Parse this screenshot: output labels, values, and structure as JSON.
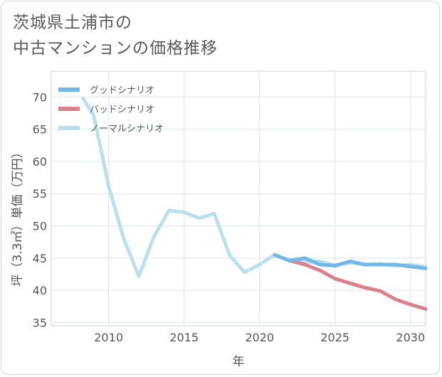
{
  "title_lines": [
    "茨城県土浦市の",
    "中古マンションの価格推移"
  ],
  "chart_data": {
    "type": "line",
    "xlabel": "年",
    "ylabel": "坪（3.3㎡）単価（万円）",
    "xlim": [
      2006.2,
      2031
    ],
    "ylim": [
      34.5,
      74
    ],
    "xticks": [
      2010,
      2015,
      2020,
      2025,
      2030
    ],
    "yticks": [
      35,
      40,
      45,
      50,
      55,
      60,
      65,
      70
    ],
    "grid": true,
    "legend_position": "top-left",
    "series": [
      {
        "name": "グッドシナリオ",
        "color": "#6fb8e8",
        "x": [
          2021,
          2022,
          2023,
          2024,
          2025,
          2026,
          2027,
          2028,
          2029,
          2030,
          2031
        ],
        "y": [
          45.5,
          44.6,
          45.0,
          44.0,
          43.8,
          44.5,
          44.0,
          44.0,
          44.0,
          43.7,
          43.4
        ]
      },
      {
        "name": "バッドシナリオ",
        "color": "#d9828e",
        "x": [
          2021,
          2022,
          2023,
          2024,
          2025,
          2026,
          2027,
          2028,
          2029,
          2030,
          2031
        ],
        "y": [
          45.5,
          44.6,
          44.0,
          43.1,
          41.8,
          41.1,
          40.4,
          39.9,
          38.6,
          37.8,
          37.1
        ]
      },
      {
        "name": "ノーマルシナリオ",
        "color": "#bcdff0",
        "x": [
          2008.3,
          2009,
          2010,
          2011,
          2012,
          2013,
          2014,
          2015,
          2016,
          2017,
          2018,
          2019,
          2020,
          2021,
          2022,
          2023,
          2024,
          2025,
          2026,
          2027,
          2028,
          2029,
          2030,
          2031
        ],
        "y": [
          69.8,
          67.2,
          56.2,
          48.0,
          42.2,
          48.3,
          52.4,
          52.1,
          51.2,
          51.9,
          45.5,
          42.8,
          44.0,
          45.5,
          44.6,
          44.4,
          44.5,
          43.9,
          44.3,
          44.0,
          44.1,
          43.8,
          44.0,
          43.6
        ]
      }
    ]
  }
}
